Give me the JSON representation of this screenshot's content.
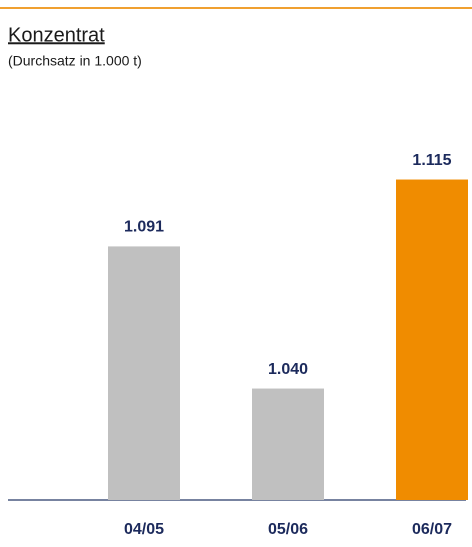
{
  "chart_data": {
    "type": "bar",
    "title": "Konzentrat",
    "subtitle": "(Durchsatz in 1.000 t)",
    "categories": [
      "04/05",
      "05/06",
      "06/07"
    ],
    "values": [
      1091,
      1040,
      1115
    ],
    "value_labels": [
      "1.091",
      "1.040",
      "1.115"
    ],
    "colors": [
      "#c0c0c0",
      "#c0c0c0",
      "#f08c00"
    ],
    "ylim": [
      1000,
      1150
    ]
  }
}
